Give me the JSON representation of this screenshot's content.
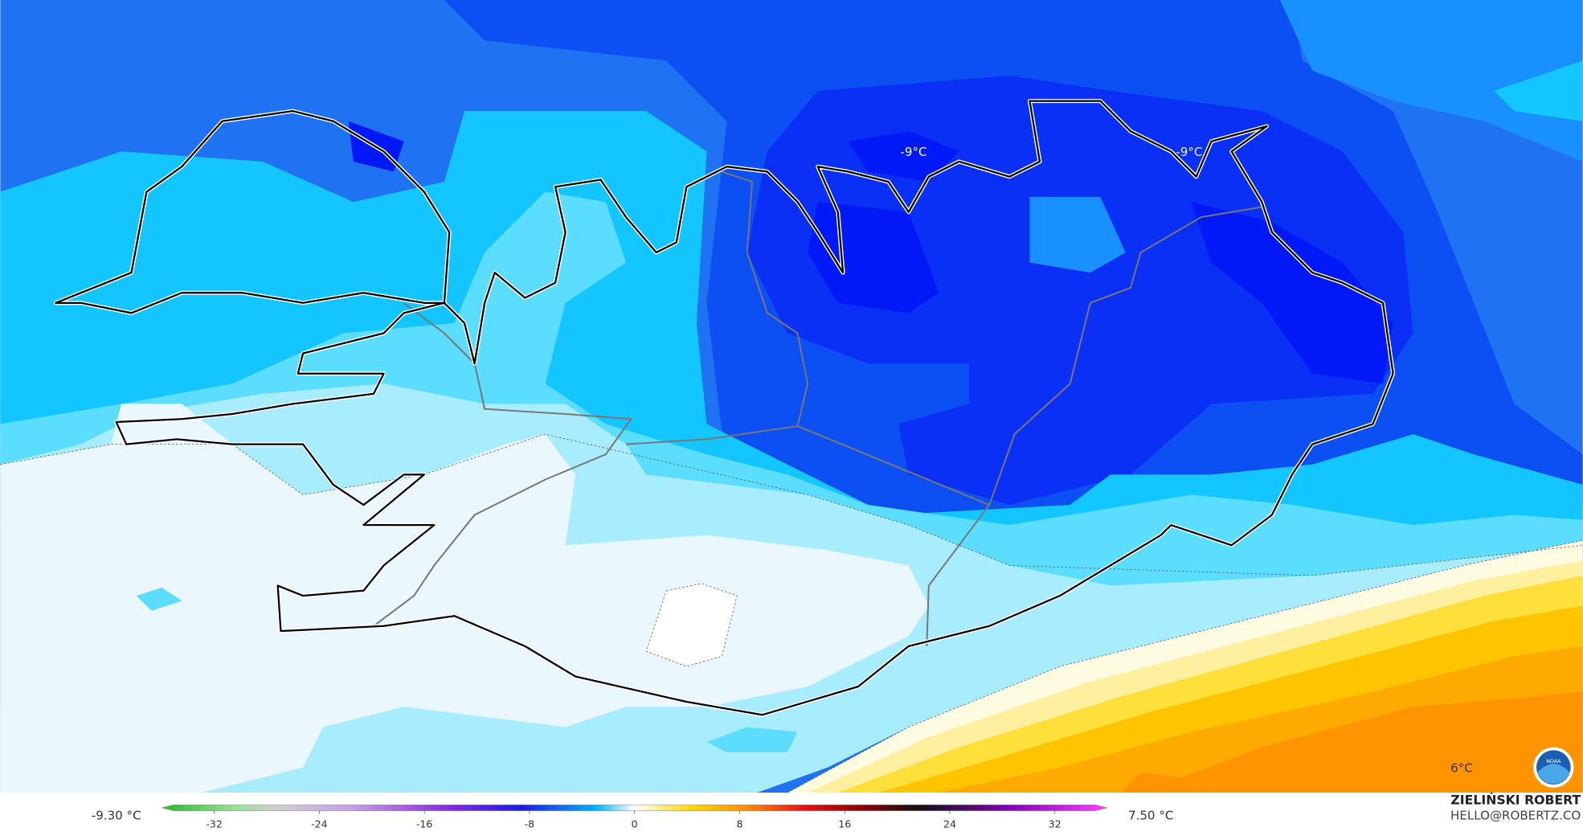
{
  "map_labels": [
    "-9°C",
    "-9°C",
    "6°C"
  ],
  "legend": {
    "min": "-9.30 °C",
    "max": "7.50 °C",
    "ticks": [
      -32,
      -24,
      -16,
      -8,
      0,
      8,
      16,
      24,
      32
    ]
  },
  "credits": {
    "author": "ZIELIŃSKI ROBERT",
    "email": "HELLO@ROBERTZ.CO"
  },
  "logo": "NOAA"
}
